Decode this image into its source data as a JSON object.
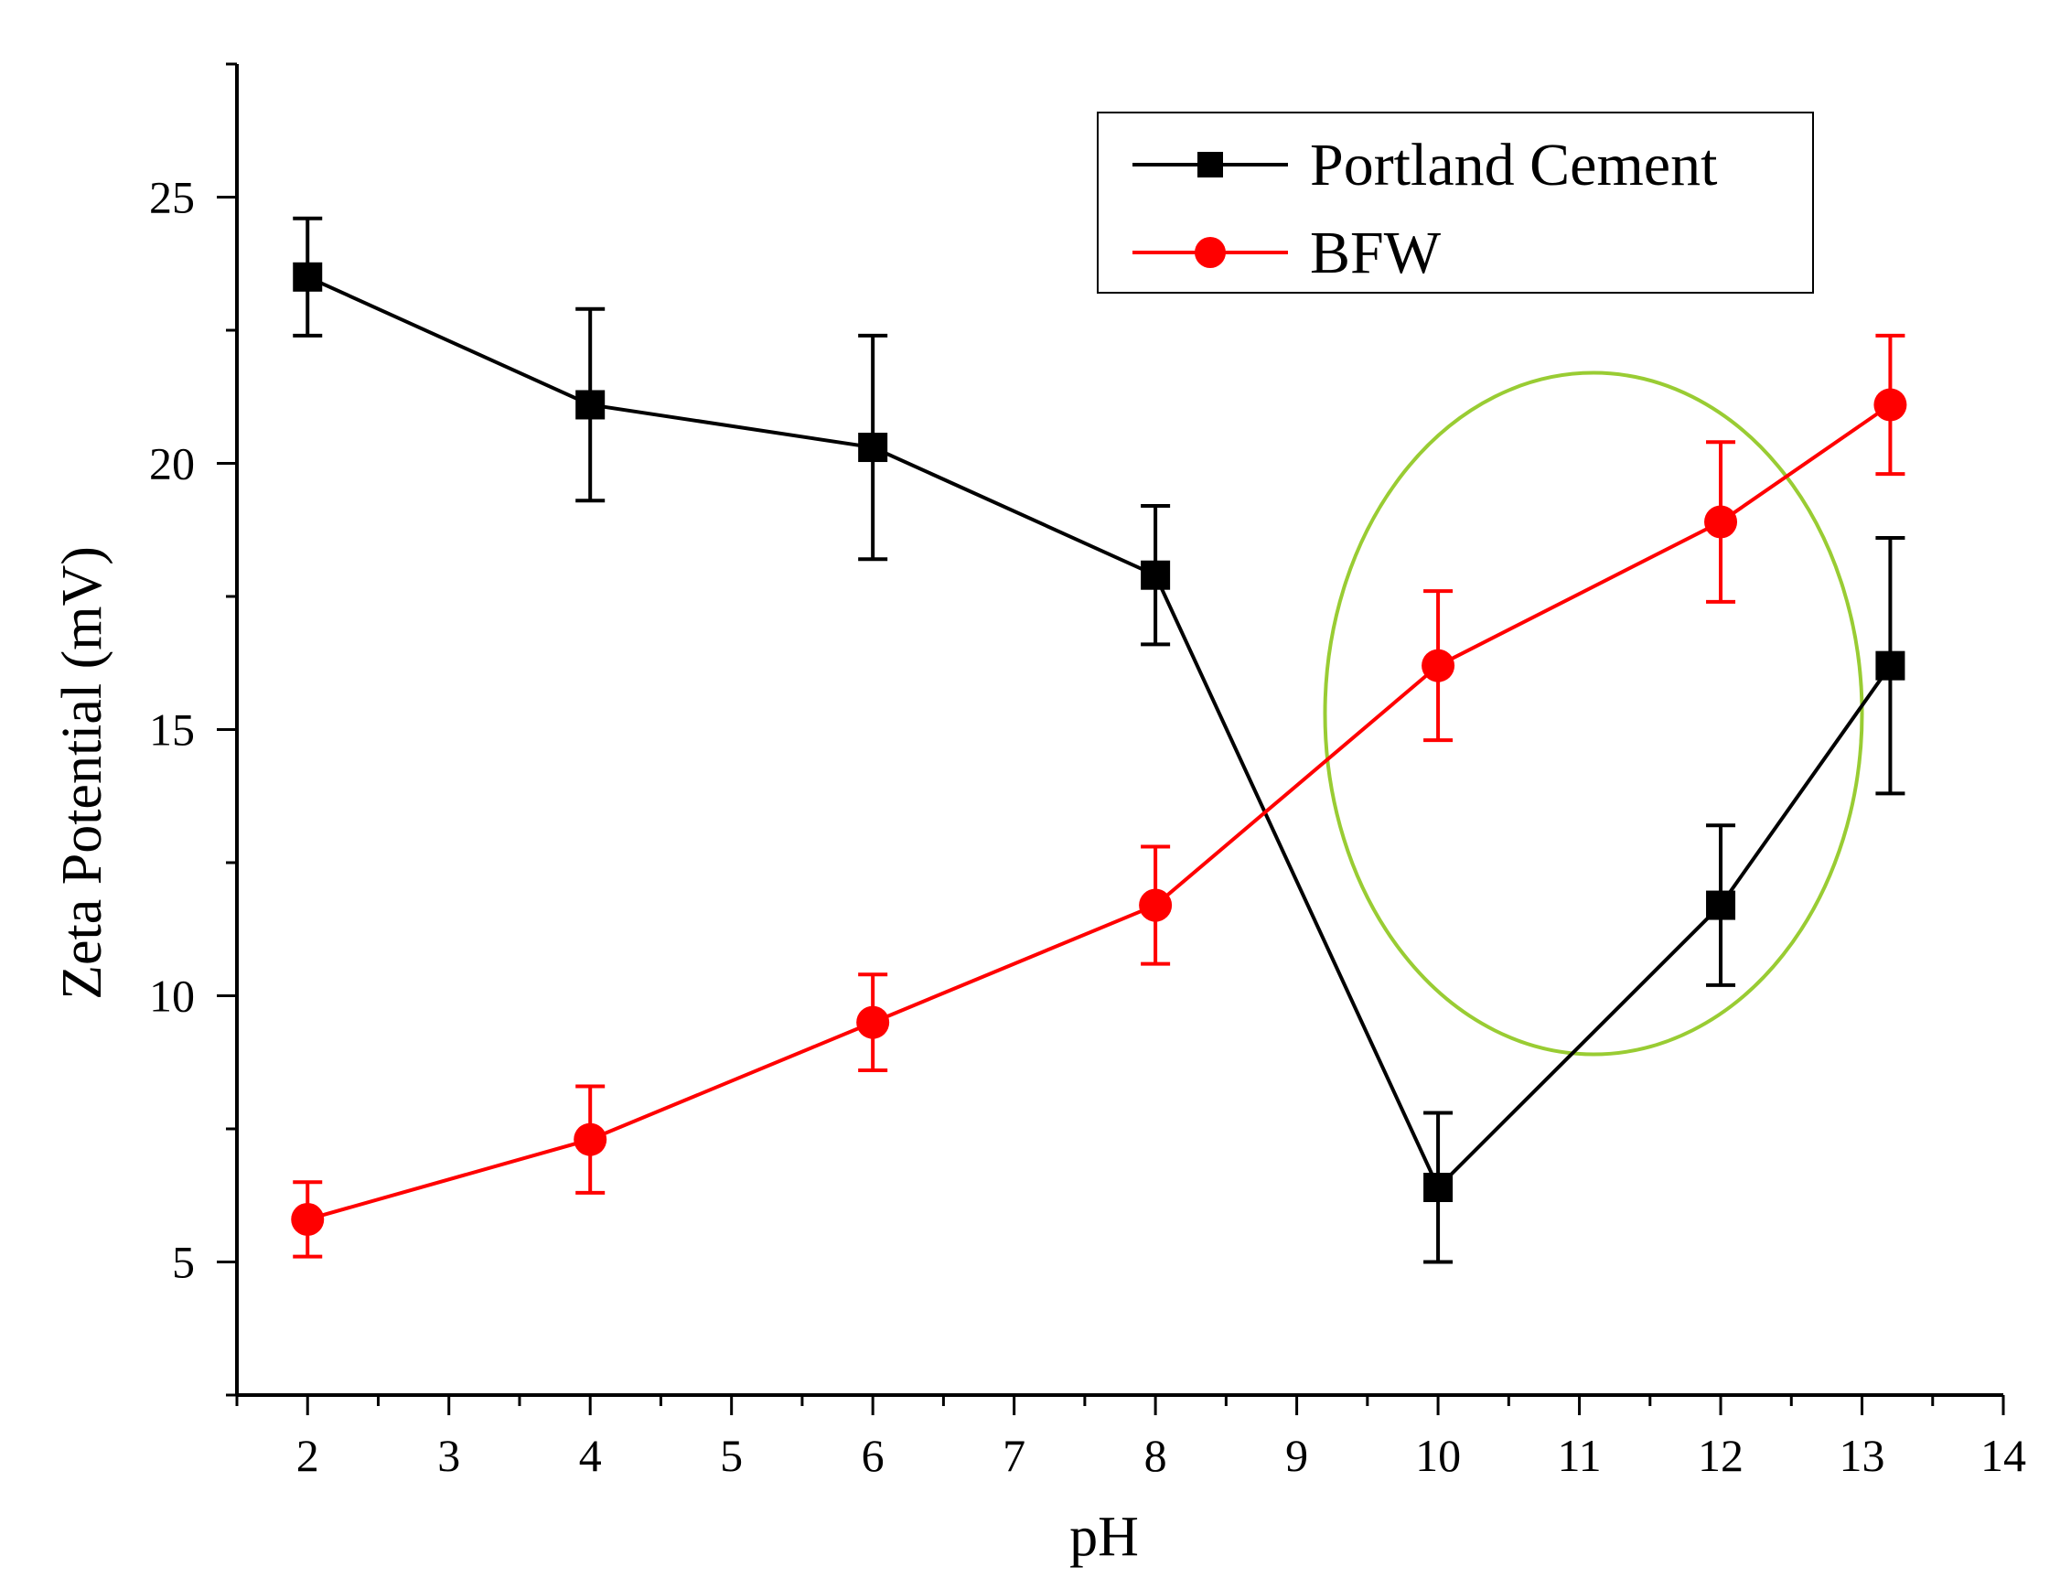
{
  "chart_data": {
    "type": "line",
    "title": "",
    "xlabel": "pH",
    "ylabel": "Zeta Potential (mV)",
    "xlim": [
      1.5,
      14
    ],
    "ylim": [
      2.5,
      27.5
    ],
    "xticks": [
      2,
      3,
      4,
      5,
      6,
      7,
      8,
      9,
      10,
      11,
      12,
      13,
      14
    ],
    "xtick_labels": [
      "2",
      "3",
      "4",
      "5",
      "6",
      "7",
      "8",
      "9",
      "10",
      "11",
      "12",
      "13",
      "14"
    ],
    "yticks": [
      5,
      10,
      15,
      20,
      25
    ],
    "ytick_labels": [
      "5",
      "10",
      "15",
      "20",
      "25"
    ],
    "grid": false,
    "legend_position": "top-right",
    "series": [
      {
        "name": "Portland Cement",
        "color": "#000000",
        "marker": "square",
        "x": [
          2,
          4,
          6,
          8,
          10,
          12,
          13.2
        ],
        "y": [
          23.5,
          21.1,
          20.3,
          17.9,
          6.4,
          11.7,
          16.2
        ],
        "err_low": [
          1.1,
          1.8,
          2.1,
          1.3,
          1.4,
          1.5,
          2.4
        ],
        "err_high": [
          1.1,
          1.8,
          2.1,
          1.3,
          1.4,
          1.5,
          2.4
        ]
      },
      {
        "name": "BFW",
        "color": "#ff0000",
        "marker": "circle",
        "x": [
          2,
          4,
          6,
          8,
          10,
          12,
          13.2
        ],
        "y": [
          5.8,
          7.3,
          9.5,
          11.7,
          16.2,
          18.9,
          21.1
        ],
        "err_low": [
          0.7,
          1.0,
          0.9,
          1.1,
          1.4,
          1.5,
          1.3
        ],
        "err_high": [
          0.7,
          1.0,
          0.9,
          1.1,
          1.4,
          1.5,
          1.3
        ]
      }
    ],
    "annotations": [
      {
        "type": "ellipse",
        "color": "#99cc33",
        "center": [
          11.1,
          15.3
        ],
        "radius_x": 1.9,
        "radius_y": 6.4
      }
    ]
  }
}
